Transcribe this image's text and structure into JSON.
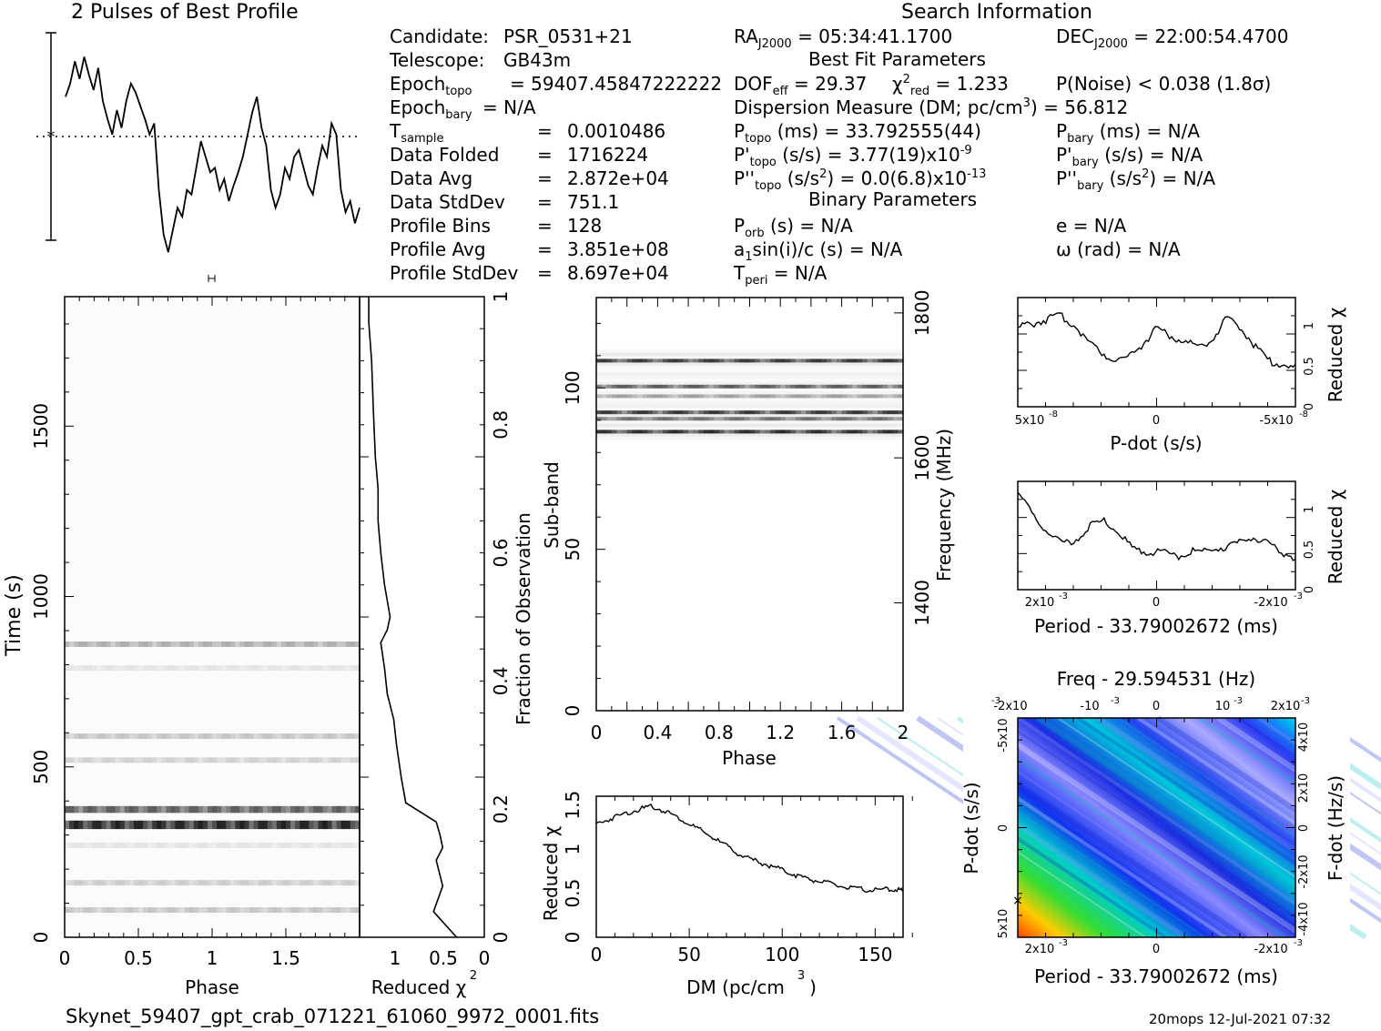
{
  "header": {
    "profile_title": "2 Pulses of Best Profile",
    "search_title": "Search Information",
    "best_fit_title": "Best Fit Parameters",
    "binary_title": "Binary Parameters"
  },
  "info_left": [
    {
      "label": "Candidate:",
      "value": "PSR_0531+21"
    },
    {
      "label": "Telescope:",
      "value": "GB43m"
    },
    {
      "label": "Epoch",
      "sub": "topo",
      "value": "= 59407.45847222222"
    },
    {
      "label": "Epoch",
      "sub": "bary",
      "value": "= N/A"
    },
    {
      "label": "T",
      "sub": "sample",
      "eq": "=",
      "value": "0.0010486"
    },
    {
      "label": "Data Folded",
      "eq": "=",
      "value": "1716224"
    },
    {
      "label": "Data Avg",
      "eq": "=",
      "value": "2.872e+04"
    },
    {
      "label": "Data StdDev",
      "eq": "=",
      "value": "751.1"
    },
    {
      "label": "Profile Bins",
      "eq": "=",
      "value": "128"
    },
    {
      "label": "Profile Avg",
      "eq": "=",
      "value": "3.851e+08"
    },
    {
      "label": "Profile StdDev",
      "eq": "=",
      "value": "8.697e+04"
    }
  ],
  "info_mid": {
    "ra": "= 05:34:41.1700",
    "dec": "= 22:00:54.4700",
    "dof": "= 29.37",
    "chi2_red": "= 1.233",
    "p_noise": "P(Noise) < 0.038   (1.8σ)",
    "dm": "Dispersion Measure (DM; pc/cm",
    "dm_val": ") = 56.812",
    "p_topo": "(ms) =  33.792555(44)",
    "pd_topo": "(s/s) =  3.77(19)x10",
    "pd_exp": "-9",
    "pdd_topo": "(s/s",
    "pdd_val": ") = 0.0(6.8)x10",
    "pdd_exp": "-13",
    "p_bary": "(ms) = N/A",
    "pd_bary": "(s/s) = N/A",
    "pdd_bary": ") = N/A",
    "p_orb": "(s) = N/A",
    "a1": "a",
    "a1_rest": "sin(i)/c (s) = N/A",
    "t_peri": "= N/A",
    "e": "e = N/A",
    "omega": "ω (rad) = N/A"
  },
  "footer": {
    "filename": "Skynet_59407_gpt_crab_071221_61060_9972_0001.fits",
    "stamp": "20mops 12-Jul-2021 07:32"
  },
  "chart_data": [
    {
      "id": "profile",
      "type": "line",
      "title": "2 Pulses of Best Profile",
      "x": "phase 0-2 (128 bins repeated twice)",
      "values": [
        0.72,
        0.78,
        0.88,
        0.8,
        0.9,
        0.82,
        0.75,
        0.85,
        0.7,
        0.62,
        0.55,
        0.66,
        0.58,
        0.7,
        0.78,
        0.74,
        0.68,
        0.62,
        0.55,
        0.6,
        0.3,
        0.1,
        0.02,
        0.12,
        0.22,
        0.18,
        0.3,
        0.28,
        0.4,
        0.52,
        0.45,
        0.38,
        0.4,
        0.3,
        0.35,
        0.25,
        0.32,
        0.38,
        0.45,
        0.55,
        0.65,
        0.72,
        0.58,
        0.5,
        0.3,
        0.22,
        0.28,
        0.4,
        0.35,
        0.45,
        0.48,
        0.4,
        0.32,
        0.28,
        0.4,
        0.5,
        0.45,
        0.6,
        0.55,
        0.3,
        0.2,
        0.25,
        0.15,
        0.22
      ]
    },
    {
      "id": "time_phase",
      "type": "heatmap",
      "xlabel": "Phase",
      "ylabel": "Time (s)",
      "xlim": [
        0,
        2
      ],
      "ylim": [
        0,
        1880
      ],
      "x_ticks": [
        "0",
        "0.5",
        "1",
        "1.5"
      ],
      "y_ticks": [
        "0",
        "500",
        "1000",
        "1500"
      ],
      "bright_rows_s": [
        {
          "t": 330,
          "w": 25,
          "v": 0.95
        },
        {
          "t": 375,
          "w": 20,
          "v": 0.7
        },
        {
          "t": 860,
          "w": 15,
          "v": 0.35
        },
        {
          "t": 590,
          "w": 15,
          "v": 0.25
        },
        {
          "t": 520,
          "w": 12,
          "v": 0.2
        },
        {
          "t": 160,
          "w": 12,
          "v": 0.22
        },
        {
          "t": 80,
          "w": 12,
          "v": 0.25
        },
        {
          "t": 270,
          "w": 15,
          "v": 0.12
        },
        {
          "t": 790,
          "w": 12,
          "v": 0.12
        }
      ]
    },
    {
      "id": "time_chi2",
      "type": "line",
      "xlabel": "Reduced χ2",
      "ylabel": "Fraction of Observation",
      "x_ticks": [
        "1",
        "0.5",
        "0"
      ],
      "y_ticks": [
        "0",
        "0.2",
        "0.4",
        "0.6",
        "0.8",
        "1"
      ],
      "x": [
        0.3,
        0.55,
        0.45,
        0.52,
        0.45,
        0.48,
        0.52,
        0.85,
        0.9,
        0.95,
        0.98,
        1.05,
        1.08,
        1.12,
        1.05,
        1.02,
        1.08,
        1.12,
        1.15,
        1.15,
        1.18,
        1.2,
        1.22,
        1.25,
        1.25
      ],
      "y": [
        0.0,
        0.04,
        0.08,
        0.12,
        0.14,
        0.16,
        0.18,
        0.21,
        0.25,
        0.3,
        0.34,
        0.38,
        0.42,
        0.46,
        0.48,
        0.5,
        0.55,
        0.6,
        0.65,
        0.7,
        0.75,
        0.82,
        0.9,
        0.96,
        1.0
      ]
    },
    {
      "id": "subband",
      "type": "heatmap",
      "xlabel": "Phase",
      "ylabel": "Sub-band",
      "y2label": "Frequency (MHz)",
      "xlim": [
        0,
        2
      ],
      "ylim": [
        0,
        128
      ],
      "x_ticks": [
        "0",
        "0.4",
        "0.8",
        "1.2",
        "1.6",
        "2"
      ],
      "y_ticks": [
        "0",
        "50",
        "100"
      ],
      "y2_ticks": [
        "1400",
        "1600",
        "1800"
      ],
      "dark_bands": [
        {
          "b": 108,
          "v": 0.85
        },
        {
          "b": 100,
          "v": 0.7
        },
        {
          "b": 97,
          "v": 0.4
        },
        {
          "b": 92,
          "v": 0.85
        },
        {
          "b": 90,
          "v": 0.6
        },
        {
          "b": 86,
          "v": 0.9
        }
      ]
    },
    {
      "id": "dm_chi2",
      "type": "line",
      "xlabel": "DM (pc/cm3)",
      "ylabel": "Reduced χ2",
      "xlim": [
        0,
        165
      ],
      "ylim": [
        0,
        1.6
      ],
      "x_ticks": [
        "0",
        "50",
        "100",
        "150"
      ],
      "y_ticks": [
        "0",
        "0.5",
        "1",
        "1.5"
      ],
      "x": [
        0,
        10,
        20,
        30,
        40,
        50,
        60,
        70,
        80,
        90,
        100,
        110,
        120,
        130,
        140,
        150,
        160,
        165
      ],
      "y": [
        1.3,
        1.38,
        1.45,
        1.5,
        1.42,
        1.3,
        1.18,
        1.05,
        0.92,
        0.85,
        0.78,
        0.7,
        0.65,
        0.6,
        0.56,
        0.55,
        0.56,
        0.54
      ]
    },
    {
      "id": "pdot_chi2",
      "type": "line",
      "xlabel": "P-dot (s/s)",
      "ylabel": "Reduced χ2",
      "x_ticks": [
        "5x10",
        "0",
        "-5x10"
      ],
      "x_exp": "-8",
      "y_ticks": [
        "0",
        "0.5",
        "1"
      ],
      "values": [
        1.0,
        1.05,
        1.1,
        1.15,
        1.05,
        0.85,
        0.7,
        0.6,
        0.65,
        0.8,
        1.0,
        0.9,
        0.82,
        0.78,
        0.85,
        1.1,
        1.02,
        0.8,
        0.6,
        0.55,
        0.5
      ]
    },
    {
      "id": "period_chi2",
      "type": "line",
      "xlabel": "Period - 33.79002672 (ms)",
      "ylabel": "Reduced χ2",
      "x_ticks": [
        "2x10",
        "0",
        "-2x10"
      ],
      "x_exp": "-3",
      "y_ticks": [
        "0",
        "0.5",
        "1"
      ],
      "values": [
        1.25,
        0.95,
        0.75,
        0.6,
        0.65,
        0.82,
        0.88,
        0.7,
        0.52,
        0.5,
        0.48,
        0.45,
        0.5,
        0.5,
        0.55,
        0.6,
        0.68,
        0.6,
        0.5,
        0.42
      ]
    },
    {
      "id": "period_pdot",
      "type": "heatmap",
      "title": "Freq - 29.594531 (Hz)",
      "xlabel": "Period - 33.79002672 (ms)",
      "ylabel": "P-dot (s/s)",
      "y2label": "F-dot (Hz/s)",
      "x_ticks_bottom": [
        "2x10",
        "0",
        "-2x10"
      ],
      "x_ticks_top": [
        "-2x10",
        "-10",
        "0",
        "10",
        "2x10"
      ],
      "y_ticks_left": [
        "-5x10",
        "0",
        "5x10"
      ],
      "y_ticks_right": [
        "4x10",
        "2x10",
        "0",
        "-2x10",
        "-4x10"
      ]
    }
  ]
}
